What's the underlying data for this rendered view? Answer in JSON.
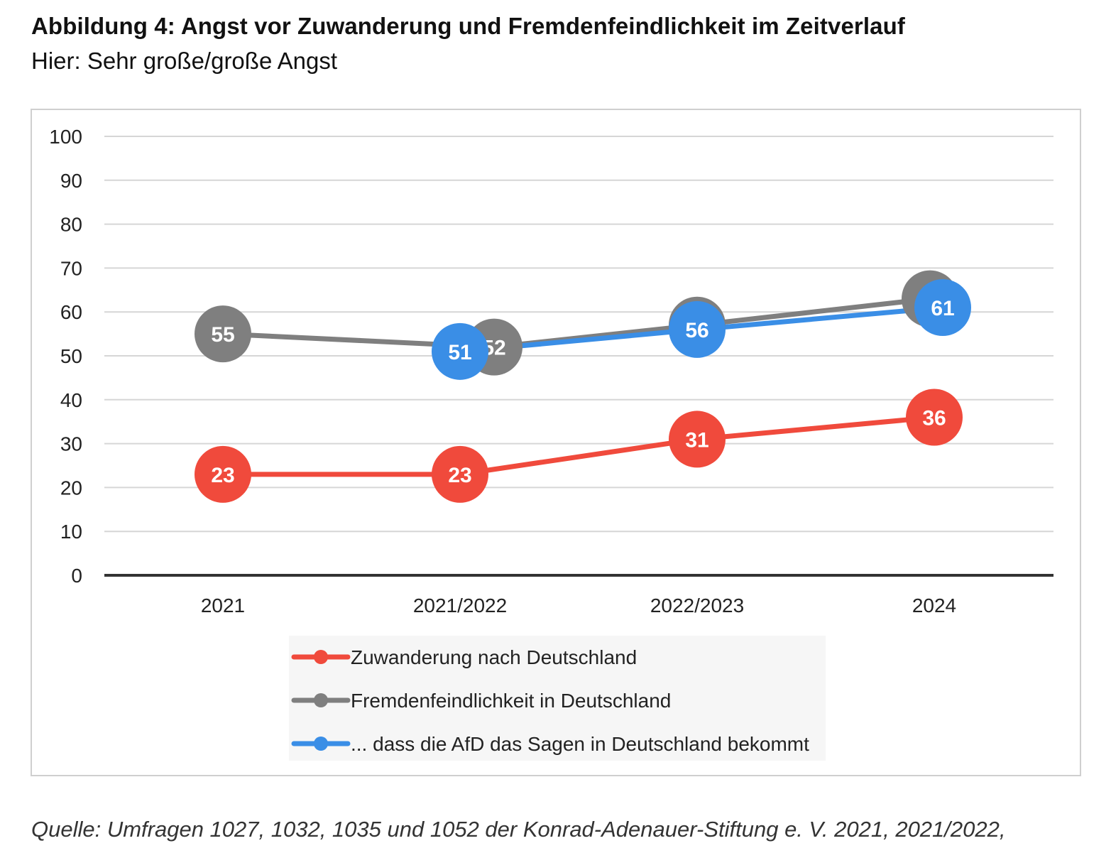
{
  "figure": {
    "title": "Abbildung 4: Angst vor Zuwanderung und Fremdenfeindlichkeit im Zeitverlauf",
    "subtitle": "Hier: Sehr große/große Angst",
    "source": "Quelle: Umfragen 1027, 1032, 1035 und 1052 der Konrad-Adenauer-Stiftung e. V. 2021, 2021/2022,"
  },
  "chart_data": {
    "type": "line",
    "categories": [
      "2021",
      "2021/2022",
      "2022/2023",
      "2024"
    ],
    "ylim": [
      0,
      100
    ],
    "yticks": [
      0,
      10,
      20,
      30,
      40,
      50,
      60,
      70,
      80,
      90,
      100
    ],
    "grid": true,
    "legend_position": "bottom",
    "data_labels": true,
    "series": [
      {
        "name": "Zuwanderung nach Deutschland",
        "color": "#f04a3c",
        "values": [
          23,
          23,
          31,
          36
        ]
      },
      {
        "name": "Fremdenfeindlichkeit in Deutschland",
        "color": "#7f7f7f",
        "values": [
          55,
          52,
          57,
          63
        ]
      },
      {
        "name": "... dass die AfD das Sagen in Deutschland bekommt",
        "color": "#3a8ee6",
        "values": [
          null,
          51,
          56,
          61
        ]
      }
    ]
  }
}
